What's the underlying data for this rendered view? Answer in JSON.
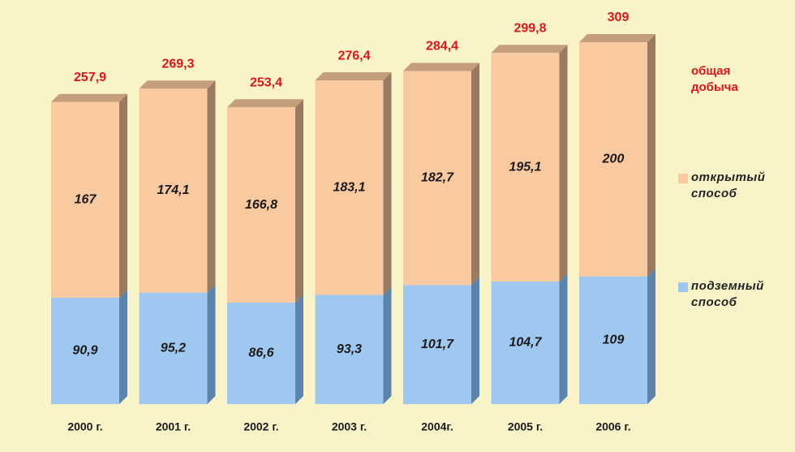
{
  "chart_data": {
    "type": "bar",
    "stacked": true,
    "categories": [
      "2000 г.",
      "2001 г.",
      "2002 г.",
      "2003 г.",
      "2004г.",
      "2005 г.",
      "2006 г."
    ],
    "series": [
      {
        "name": "подземный способ",
        "values": [
          90.9,
          95.2,
          86.6,
          93.3,
          101.7,
          104.7,
          109
        ],
        "labels": [
          "90,9",
          "95,2",
          "86,6",
          "93,3",
          "101,7",
          "104,7",
          "109"
        ]
      },
      {
        "name": "открытый способ",
        "values": [
          167,
          174.1,
          166.8,
          183.1,
          182.7,
          195.1,
          200
        ],
        "labels": [
          "167",
          "174,1",
          "166,8",
          "183,1",
          "182,7",
          "195,1",
          "200"
        ]
      }
    ],
    "totals": {
      "name": "общая добыча",
      "values": [
        257.9,
        269.3,
        253.4,
        276.4,
        284.4,
        299.8,
        309
      ],
      "labels": [
        "257,9",
        "269,3",
        "253,4",
        "276,4",
        "284,4",
        "299,8",
        "309"
      ]
    },
    "ylim": [
      0,
      309
    ],
    "legend_position": "right",
    "colors": {
      "underground": "#9ec8ef",
      "underground_side": "#5b84ad",
      "open": "#f9c9a0",
      "open_side": "#9a7b62",
      "top": "#c59e7c",
      "totals": "#e0141a",
      "background": "#f8f4c8"
    }
  },
  "legend": {
    "total_line1": "общая",
    "total_line2": "добыча",
    "open_line1": "открытый",
    "open_line2": "способ",
    "underground_line1": "подземный",
    "underground_line2": "способ"
  }
}
